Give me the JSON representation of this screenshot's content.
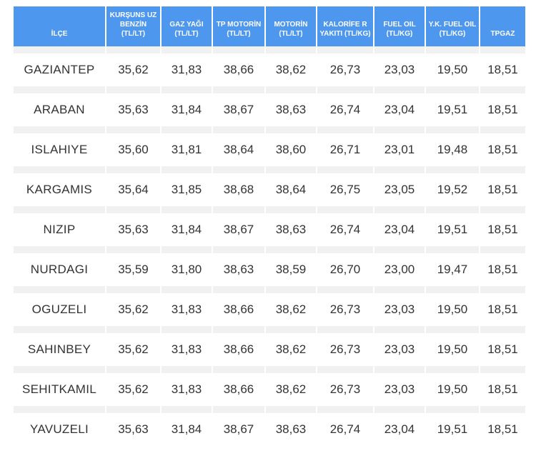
{
  "table": {
    "headers": [
      "İLÇE",
      "KURŞUNS UZ BENZİN (TL/LT)",
      "GAZ YAĞI (TL/LT)",
      "TP MOTORİN (TL/LT)",
      "MOTORİN (TL/LT)",
      "KALORİFE R YAKITI (TL/KG)",
      "FUEL OIL (TL/KG)",
      "Y.K. FUEL OIL (TL/KG)",
      "TPGAZ"
    ],
    "rows": [
      [
        "GAZIANTEP",
        "35,62",
        "31,83",
        "38,66",
        "38,62",
        "26,73",
        "23,03",
        "19,50",
        "18,51"
      ],
      [
        "ARABAN",
        "35,63",
        "31,84",
        "38,67",
        "38,63",
        "26,74",
        "23,04",
        "19,51",
        "18,51"
      ],
      [
        "ISLAHIYE",
        "35,60",
        "31,81",
        "38,64",
        "38,60",
        "26,71",
        "23,01",
        "19,48",
        "18,51"
      ],
      [
        "KARGAMIS",
        "35,64",
        "31,85",
        "38,68",
        "38,64",
        "26,75",
        "23,05",
        "19,52",
        "18,51"
      ],
      [
        "NIZIP",
        "35,63",
        "31,84",
        "38,67",
        "38,63",
        "26,74",
        "23,04",
        "19,51",
        "18,51"
      ],
      [
        "NURDAGI",
        "35,59",
        "31,80",
        "38,63",
        "38,59",
        "26,70",
        "23,00",
        "19,47",
        "18,51"
      ],
      [
        "OGUZELI",
        "35,62",
        "31,83",
        "38,66",
        "38,62",
        "26,73",
        "23,03",
        "19,50",
        "18,51"
      ],
      [
        "SAHINBEY",
        "35,62",
        "31,83",
        "38,66",
        "38,62",
        "26,73",
        "23,03",
        "19,50",
        "18,51"
      ],
      [
        "SEHITKAMIL",
        "35,62",
        "31,83",
        "38,66",
        "38,62",
        "26,73",
        "23,03",
        "19,50",
        "18,51"
      ],
      [
        "YAVUZELI",
        "35,63",
        "31,84",
        "38,67",
        "38,63",
        "26,74",
        "23,04",
        "19,51",
        "18,51"
      ]
    ]
  },
  "colors": {
    "header_bg": "#4e97ee",
    "row_separator": "#f1f1f1",
    "cell_text": "#333333"
  }
}
